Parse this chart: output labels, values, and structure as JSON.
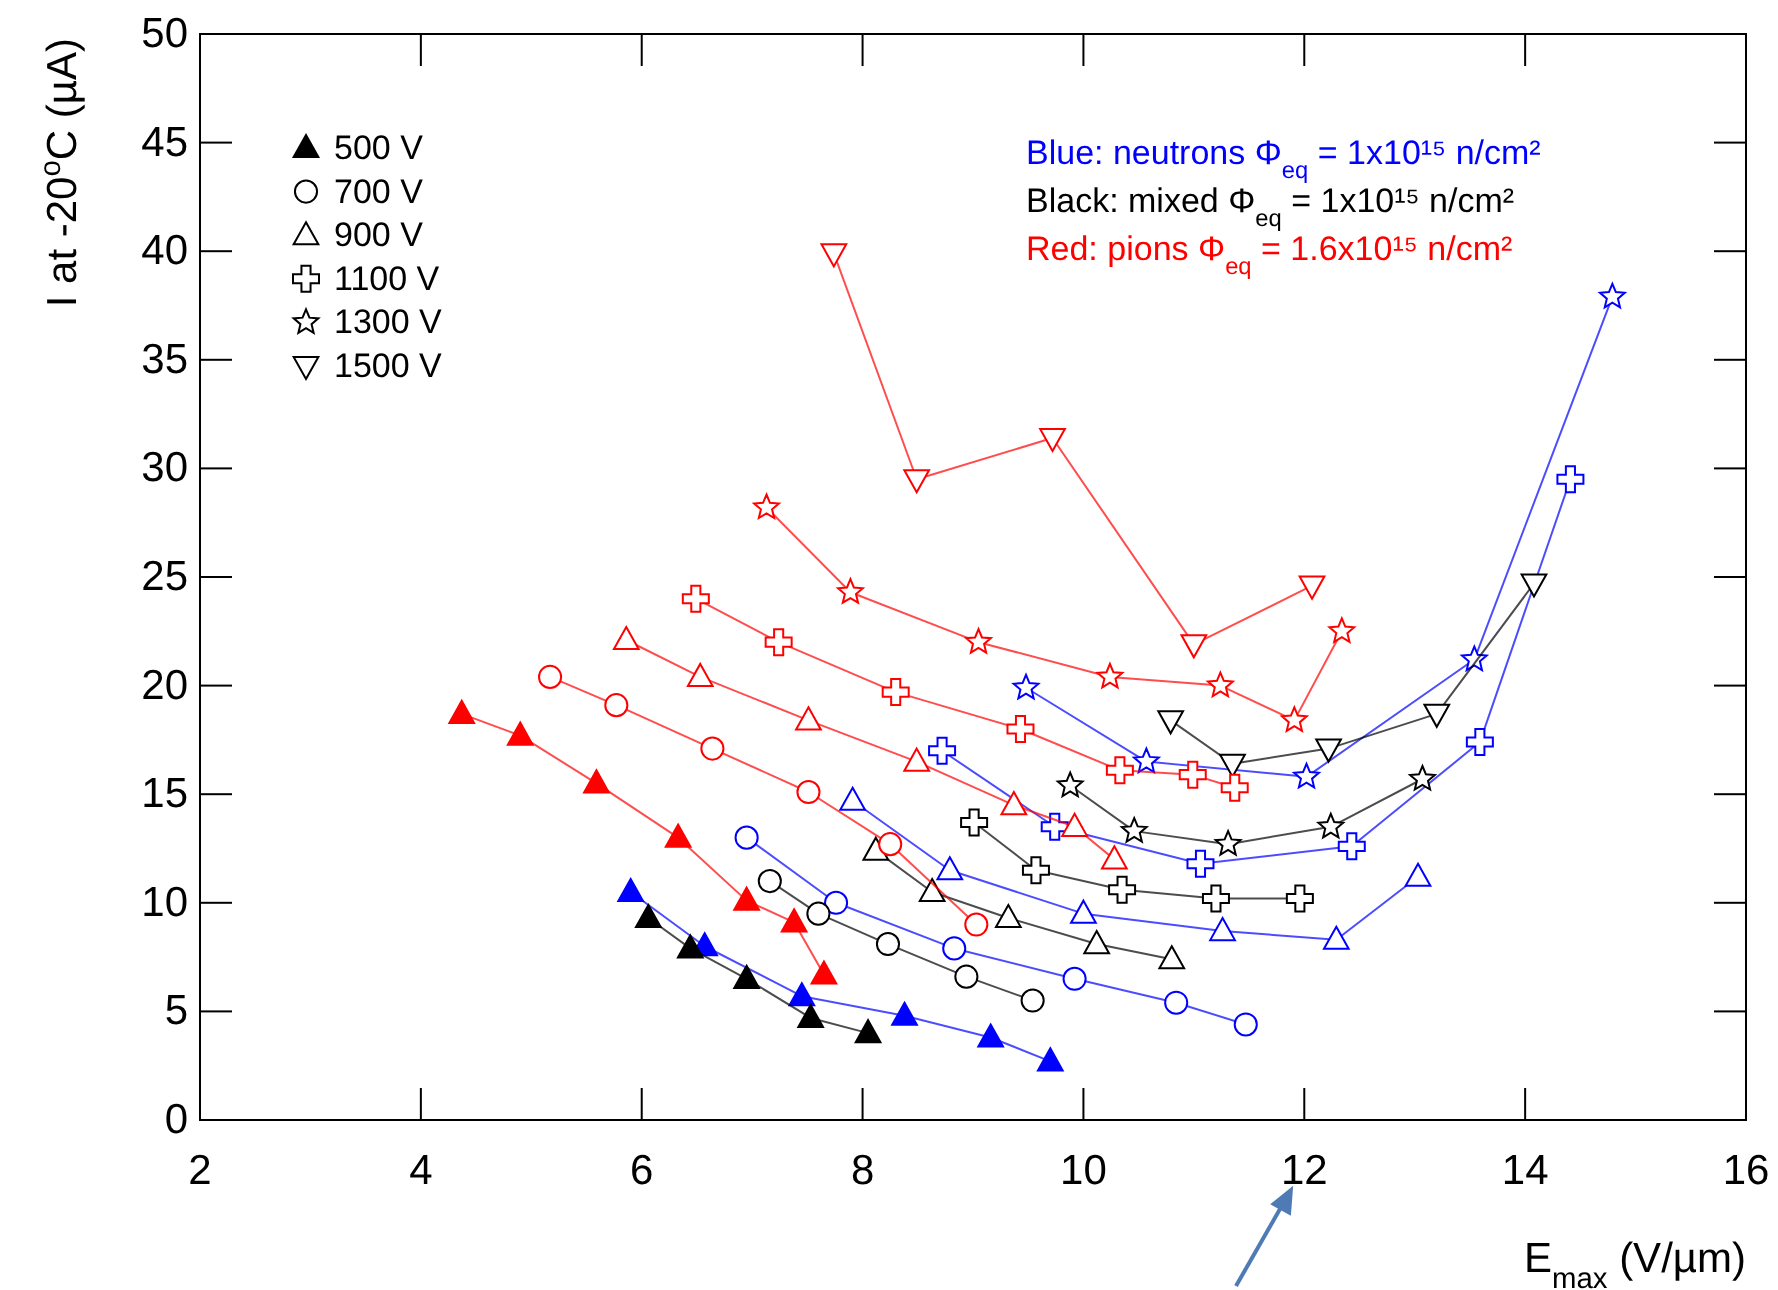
{
  "chart_data": {
    "type": "line",
    "xlabel": "E$_{max}$ (V/µm)",
    "ylabel": "I at -20$^{o}$C (µA)",
    "xlim": [
      2,
      16
    ],
    "xticks": [
      2,
      4,
      6,
      8,
      10,
      12,
      14,
      16
    ],
    "ylim": [
      0,
      50
    ],
    "yticks": [
      0,
      5,
      10,
      15,
      20,
      25,
      30,
      35,
      40,
      45,
      50
    ],
    "grid": false,
    "legend": "top left",
    "annotations": [
      "Blue: neutrons Φ$_{eq}$ = 1x10¹⁵ n/cm²",
      "Black: mixed Φ$_{eq}$ = 1x10¹⁵ n/cm²",
      "Red: pions Φ$_{eq}$ = 1.6x10¹⁵ n/cm²"
    ],
    "series": [
      {
        "color": "#0000ff",
        "marker": "triangle-filled",
        "x": [
          5.9,
          6.57,
          7.45,
          8.38,
          9.16,
          9.7
        ],
        "values": [
          10.5,
          8.0,
          5.7,
          4.8,
          3.8,
          2.7
        ]
      },
      {
        "color": "#0000ff",
        "marker": "circle",
        "x": [
          6.95,
          7.76,
          8.83,
          9.92,
          10.84,
          11.47
        ],
        "values": [
          13.0,
          10.0,
          7.9,
          6.5,
          5.4,
          4.4
        ]
      },
      {
        "color": "#0000ff",
        "marker": "triangle",
        "x": [
          7.91,
          8.79,
          10.0,
          11.26,
          12.29,
          13.03
        ],
        "values": [
          14.7,
          11.5,
          9.5,
          8.7,
          8.3,
          11.2
        ]
      },
      {
        "color": "#0000ff",
        "marker": "cross",
        "x": [
          8.72,
          9.74,
          11.06,
          12.43,
          13.59,
          14.41
        ],
        "values": [
          17.0,
          13.5,
          11.8,
          12.6,
          17.4,
          29.5
        ]
      },
      {
        "color": "#0000ff",
        "marker": "star",
        "x": [
          9.48,
          10.57,
          12.02,
          13.54,
          14.79
        ],
        "values": [
          19.9,
          16.5,
          15.8,
          21.2,
          37.9
        ]
      },
      {
        "name": "500 V",
        "color": "#000000",
        "marker": "triangle-filled",
        "x": [
          6.06,
          6.44,
          6.95,
          7.53,
          8.05
        ],
        "values": [
          9.3,
          7.9,
          6.5,
          4.7,
          4.0
        ]
      },
      {
        "name": "700 V",
        "color": "#000000",
        "marker": "circle",
        "x": [
          7.16,
          7.6,
          8.23,
          8.94,
          9.54
        ],
        "values": [
          11.0,
          9.5,
          8.1,
          6.6,
          5.5
        ]
      },
      {
        "name": "900 V",
        "color": "#000000",
        "marker": "triangle",
        "x": [
          8.12,
          8.63,
          9.32,
          10.12,
          10.8
        ],
        "values": [
          12.4,
          10.5,
          9.3,
          8.1,
          7.4
        ]
      },
      {
        "name": "1100 V",
        "color": "#000000",
        "marker": "cross",
        "x": [
          9.01,
          9.57,
          10.35,
          11.2,
          11.96
        ],
        "values": [
          13.7,
          11.5,
          10.6,
          10.2,
          10.2
        ]
      },
      {
        "name": "1300 V",
        "color": "#000000",
        "marker": "star",
        "x": [
          9.88,
          10.46,
          11.31,
          12.24,
          13.07
        ],
        "values": [
          15.4,
          13.3,
          12.7,
          13.5,
          15.7
        ]
      },
      {
        "name": "1500 V",
        "color": "#000000",
        "marker": "triangle-down",
        "x": [
          10.79,
          11.35,
          12.22,
          13.2,
          14.08
        ],
        "values": [
          18.4,
          16.4,
          17.1,
          18.7,
          24.7
        ]
      },
      {
        "color": "#ff0000",
        "marker": "triangle-filled",
        "x": [
          4.37,
          4.9,
          5.59,
          6.33,
          6.95,
          7.38,
          7.65
        ],
        "values": [
          18.7,
          17.7,
          15.5,
          13.0,
          10.1,
          9.1,
          6.7
        ]
      },
      {
        "color": "#ff0000",
        "marker": "circle",
        "x": [
          5.17,
          5.77,
          6.64,
          7.51,
          8.25,
          9.03
        ],
        "values": [
          20.4,
          19.1,
          17.1,
          15.1,
          12.7,
          9.0
        ]
      },
      {
        "color": "#ff0000",
        "marker": "triangle",
        "x": [
          5.86,
          6.53,
          7.51,
          8.49,
          9.37,
          9.92,
          10.28
        ],
        "values": [
          22.1,
          20.4,
          18.4,
          16.5,
          14.5,
          13.5,
          12.0
        ]
      },
      {
        "color": "#ff0000",
        "marker": "cross",
        "x": [
          6.49,
          7.24,
          8.3,
          9.43,
          10.33,
          10.99,
          11.37
        ],
        "values": [
          24.0,
          22.0,
          19.7,
          18.0,
          16.1,
          15.9,
          15.3
        ]
      },
      {
        "color": "#ff0000",
        "marker": "star",
        "x": [
          7.13,
          7.89,
          9.05,
          10.24,
          11.24,
          11.91,
          12.34
        ],
        "values": [
          28.2,
          24.3,
          22.0,
          20.4,
          20.0,
          18.4,
          22.5
        ]
      },
      {
        "color": "#ff0000",
        "marker": "triangle-down",
        "x": [
          7.74,
          8.49,
          9.72,
          11.0,
          12.07
        ],
        "values": [
          39.9,
          29.5,
          31.4,
          21.9,
          24.6
        ]
      }
    ]
  }
}
